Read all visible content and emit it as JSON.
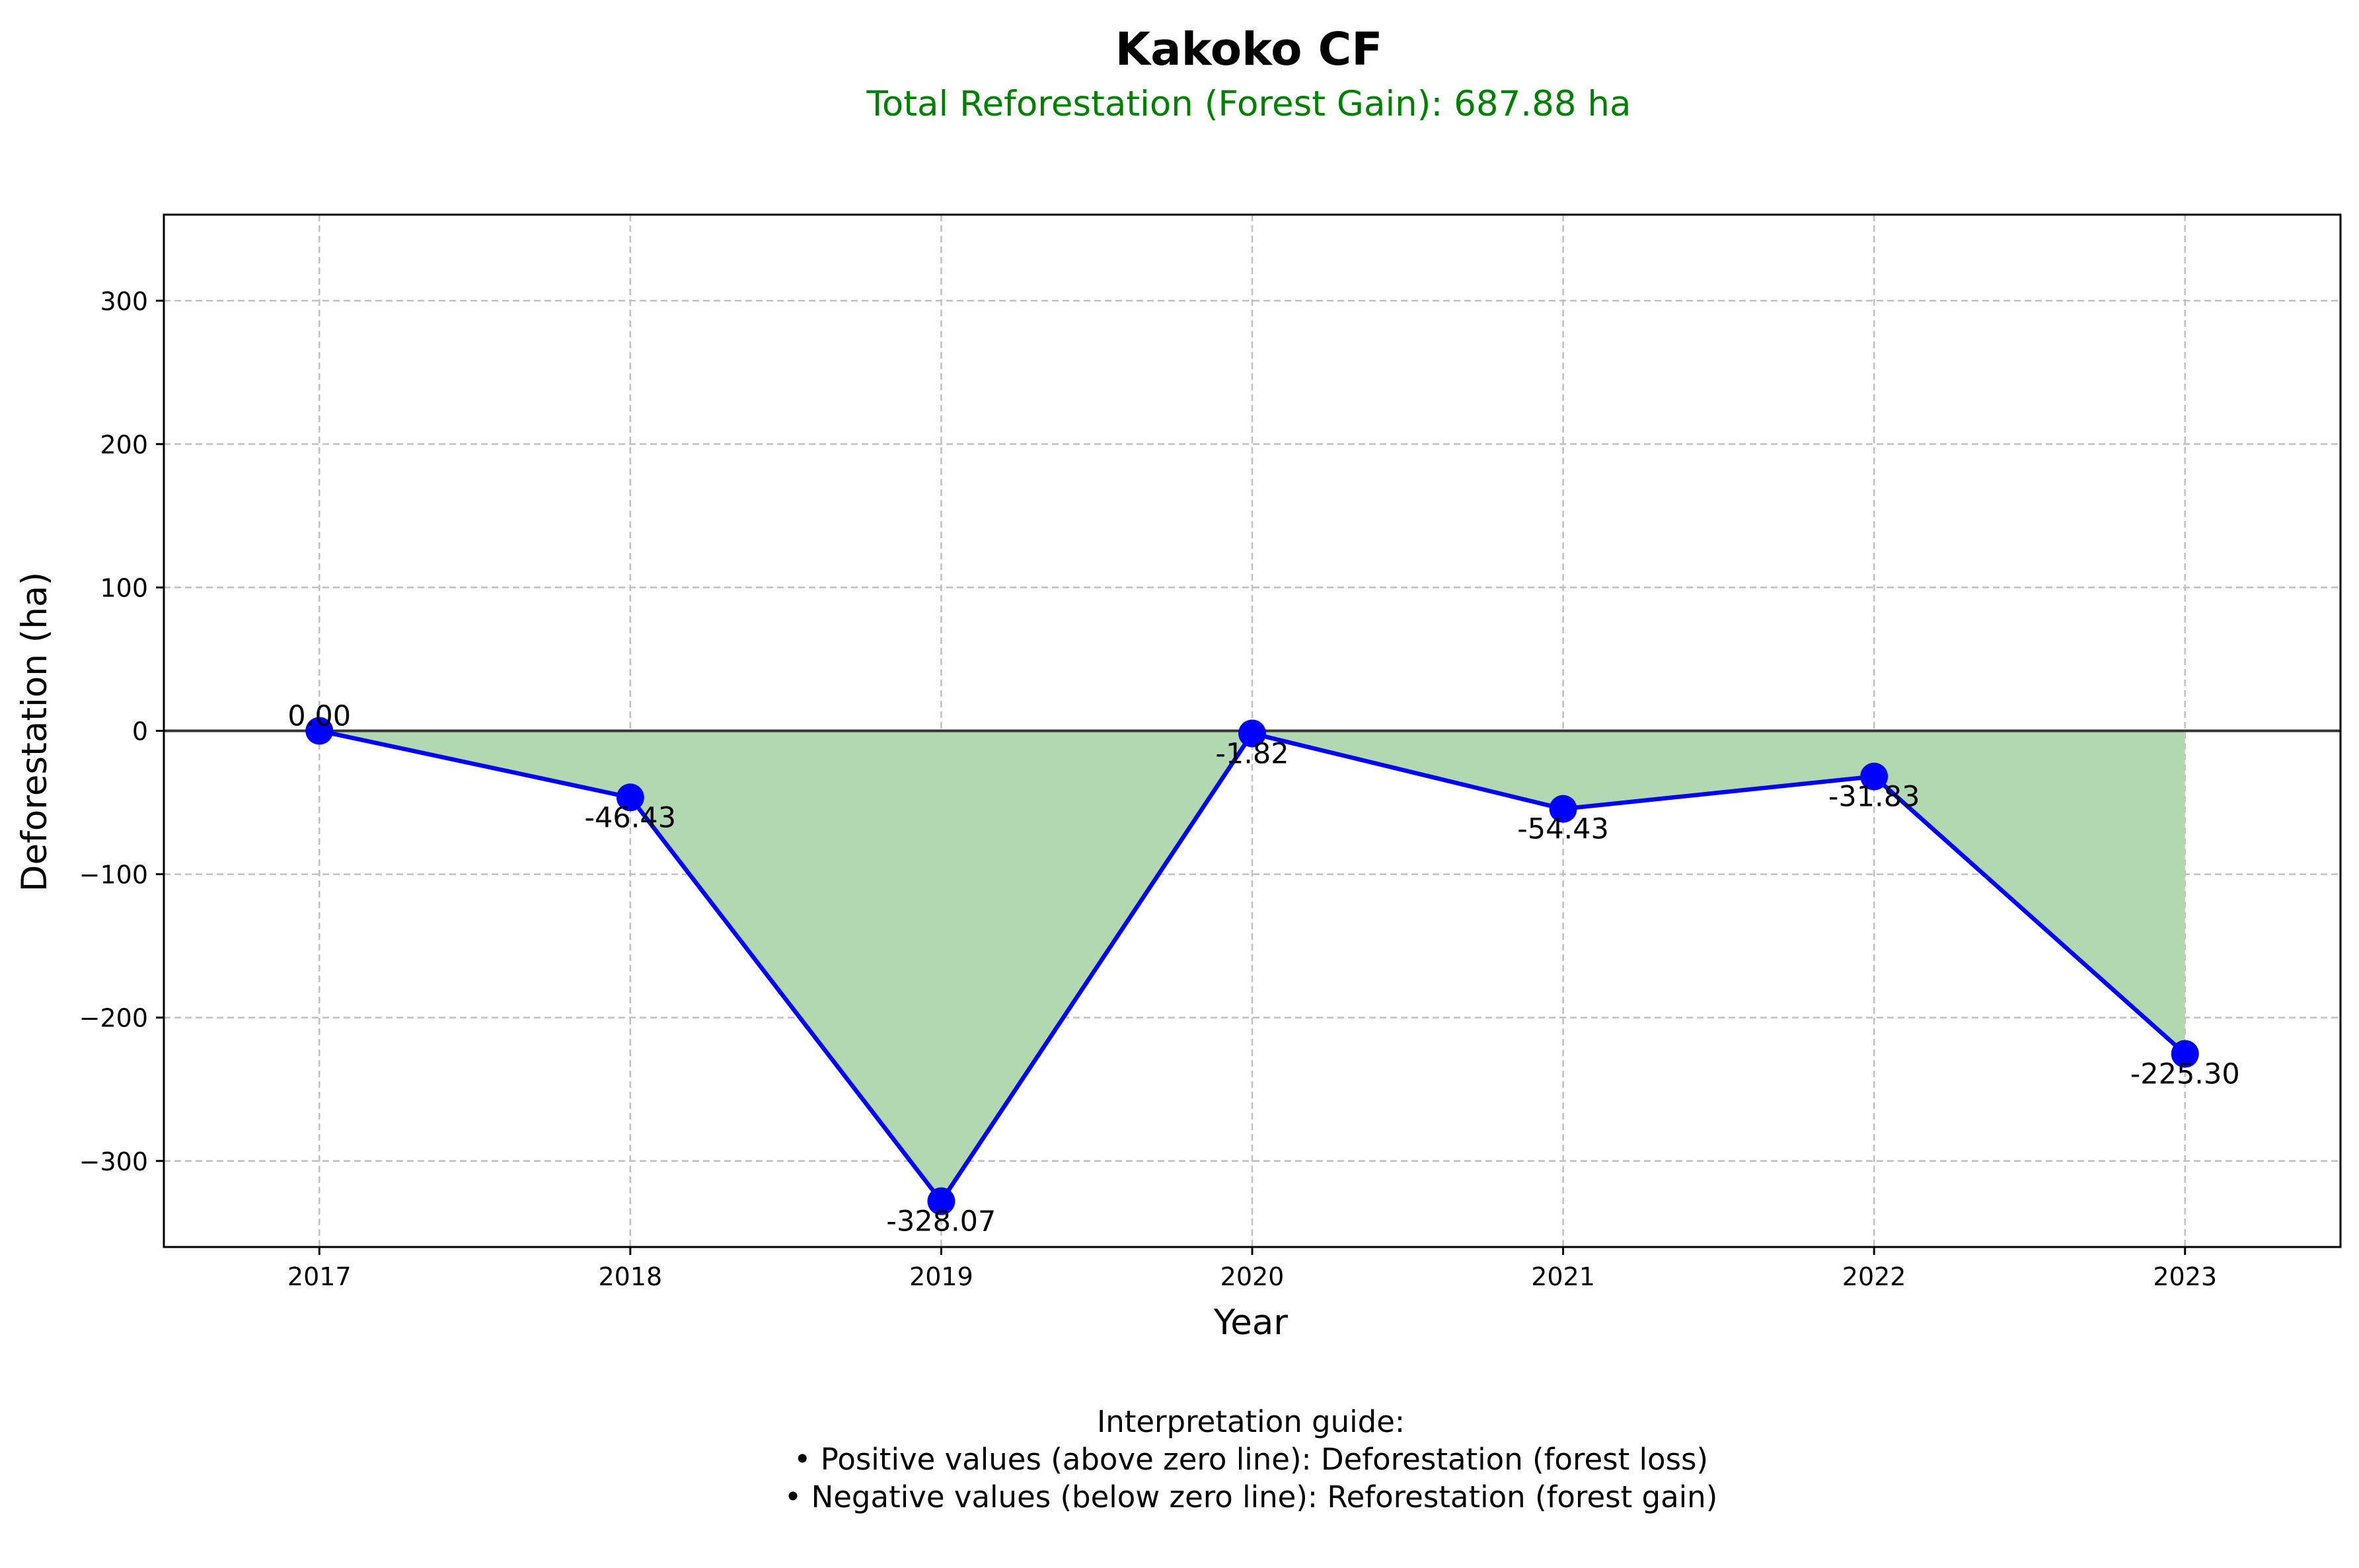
{
  "chart_data": {
    "type": "line",
    "title": "Kakoko CF",
    "subtitle": "Total Reforestation (Forest Gain): 687.88 ha",
    "xlabel": "Year",
    "ylabel": "Deforestation (ha)",
    "x": [
      "2017",
      "2018",
      "2019",
      "2020",
      "2021",
      "2022",
      "2023"
    ],
    "series": [
      {
        "values": [
          0.0,
          -46.43,
          -328.07,
          -1.82,
          -54.43,
          -31.83,
          -225.3
        ],
        "labels": [
          "0.00",
          "-46.43",
          "-328.07",
          "-1.82",
          "-54.43",
          "-31.83",
          "-225.30"
        ]
      }
    ],
    "ylim": [
      -360,
      360
    ],
    "yticks": [
      300,
      200,
      100,
      0,
      -100,
      -200,
      -300
    ],
    "ytick_labels": [
      "300",
      "200",
      "100",
      "0",
      "−100",
      "−200",
      "−300"
    ],
    "grid": true,
    "zero_line": true,
    "fill_below_zero": true,
    "colors": {
      "line": "#0000ff",
      "marker": "#0000ff",
      "fill": "#b2d8b2",
      "zero_line": "#333333",
      "subtitle": "#008000",
      "grid": "#c0c0c0"
    }
  },
  "footer": {
    "heading": "Interpretation guide:",
    "line1": "• Positive values (above zero line): Deforestation (forest loss)",
    "line2": "• Negative values (below zero line): Reforestation (forest gain)"
  }
}
